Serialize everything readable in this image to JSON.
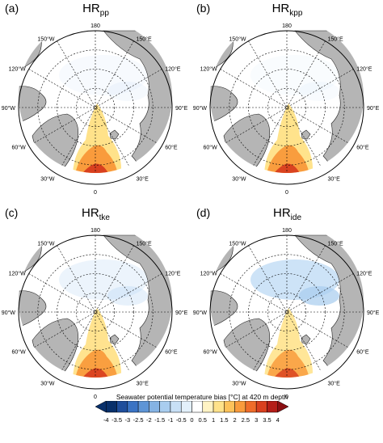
{
  "panels": [
    {
      "label": "(a)",
      "title_main": "HR",
      "title_sub": "pp",
      "warm": 1.0,
      "cool": 0.15
    },
    {
      "label": "(b)",
      "title_main": "HR",
      "title_sub": "kpp",
      "warm": 0.95,
      "cool": 0.1
    },
    {
      "label": "(c)",
      "title_main": "HR",
      "title_sub": "tke",
      "warm": 0.9,
      "cool": 0.35
    },
    {
      "label": "(d)",
      "title_main": "HR",
      "title_sub": "ide",
      "warm": 0.7,
      "cool": 0.9
    }
  ],
  "lon_labels": {
    "top": "180",
    "l150": "150°W",
    "r150": "150°E",
    "l120": "120°W",
    "r120": "120°E",
    "l90": "90°W",
    "r90": "90°E",
    "l60": "60°W",
    "r60": "60°E",
    "l30": "30°W",
    "r30": "30°E",
    "bottom": "0"
  },
  "colorbar": {
    "title": "Seawater potential temperature bias [°C] at 420 m depth",
    "ticks": [
      "-4",
      "-3.5",
      "-3",
      "-2.5",
      "-2",
      "-1.5",
      "-1",
      "-0.5",
      "0",
      "0.5",
      "1",
      "1.5",
      "2",
      "2.5",
      "3",
      "3.5",
      "4"
    ],
    "colors": [
      "#08306b",
      "#1f4e9c",
      "#3a73c4",
      "#5e95d6",
      "#85b3e4",
      "#a9cdef",
      "#c8e0f6",
      "#e3f0fb",
      "#ffffff",
      "#fff3c4",
      "#ffe28a",
      "#fdc25a",
      "#f99b3c",
      "#ef6c2a",
      "#d9401f",
      "#b41e18",
      "#8a0f12"
    ]
  }
}
